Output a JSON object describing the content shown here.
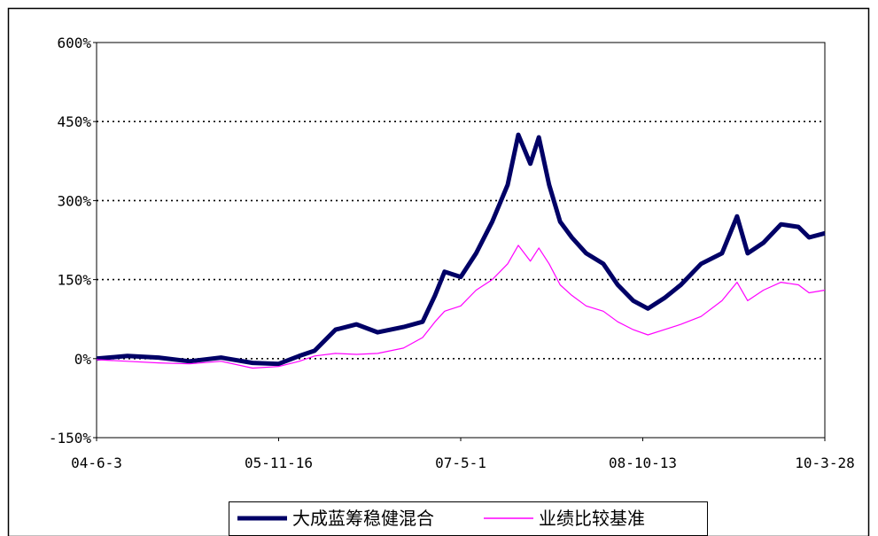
{
  "chart_data": {
    "type": "line",
    "title": "",
    "xlabel": "",
    "ylabel": "",
    "x_tick_labels": [
      "04-6-3",
      "05-11-16",
      "07-5-1",
      "08-10-13",
      "10-3-28"
    ],
    "y_tick_labels": [
      "-150%",
      "0%",
      "150%",
      "300%",
      "450%",
      "600%"
    ],
    "y_ticks": [
      -150,
      0,
      150,
      300,
      450,
      600
    ],
    "ylim": [
      -150,
      600
    ],
    "grid": "horizontal dotted",
    "legend_position": "bottom",
    "x": [
      "2004-06-03",
      "2004-09-01",
      "2004-12-01",
      "2005-03-01",
      "2005-06-01",
      "2005-09-01",
      "2005-11-16",
      "2006-01-15",
      "2006-03-01",
      "2006-05-01",
      "2006-07-01",
      "2006-09-01",
      "2006-11-15",
      "2007-01-10",
      "2007-02-15",
      "2007-03-15",
      "2007-05-01",
      "2007-06-15",
      "2007-08-01",
      "2007-09-15",
      "2007-10-16",
      "2007-11-20",
      "2007-12-15",
      "2008-01-14",
      "2008-02-15",
      "2008-03-20",
      "2008-05-01",
      "2008-06-20",
      "2008-08-01",
      "2008-09-15",
      "2008-10-28",
      "2008-12-15",
      "2009-02-01",
      "2009-04-01",
      "2009-06-01",
      "2009-07-15",
      "2009-08-15",
      "2009-09-30",
      "2009-11-20",
      "2010-01-10",
      "2010-02-10",
      "2010-03-28"
    ],
    "series": [
      {
        "name": "大成蓝筹稳健混合",
        "color": "#000066",
        "values": [
          0,
          5,
          2,
          -5,
          2,
          -8,
          -10,
          5,
          15,
          55,
          65,
          50,
          60,
          70,
          120,
          165,
          155,
          200,
          260,
          330,
          425,
          370,
          420,
          330,
          260,
          230,
          200,
          180,
          140,
          110,
          95,
          115,
          140,
          180,
          200,
          270,
          200,
          220,
          255,
          250,
          230,
          238
        ]
      },
      {
        "name": "业绩比较基准",
        "color": "#FF00FF",
        "values": [
          -2,
          -5,
          -8,
          -10,
          -5,
          -18,
          -15,
          -5,
          5,
          10,
          8,
          10,
          20,
          40,
          70,
          90,
          100,
          130,
          150,
          180,
          215,
          185,
          210,
          180,
          140,
          120,
          100,
          90,
          70,
          55,
          45,
          55,
          65,
          80,
          110,
          145,
          110,
          130,
          145,
          140,
          125,
          130
        ]
      }
    ]
  }
}
